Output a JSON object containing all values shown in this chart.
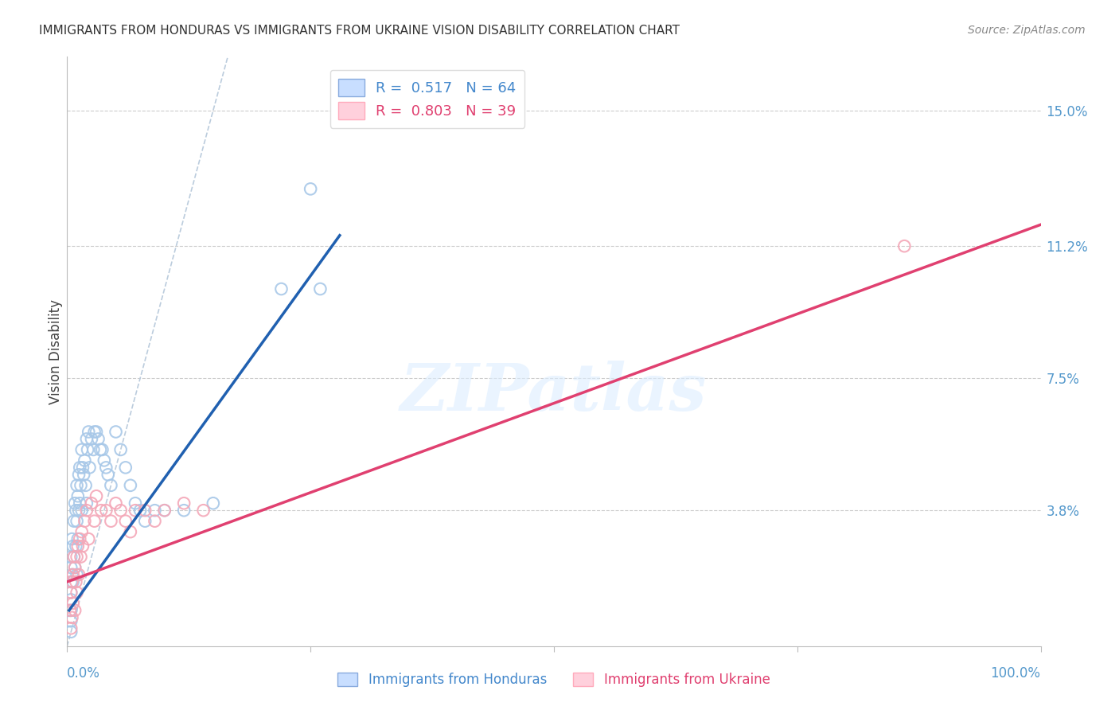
{
  "title": "IMMIGRANTS FROM HONDURAS VS IMMIGRANTS FROM UKRAINE VISION DISABILITY CORRELATION CHART",
  "source": "Source: ZipAtlas.com",
  "ylabel": "Vision Disability",
  "ytick_vals": [
    0.0,
    0.038,
    0.075,
    0.112,
    0.15
  ],
  "ytick_labels": [
    "",
    "3.8%",
    "7.5%",
    "11.2%",
    "15.0%"
  ],
  "xlim": [
    0.0,
    1.0
  ],
  "ylim": [
    0.0,
    0.165
  ],
  "watermark": "ZIPatlas",
  "honduras_color": "#A8C8E8",
  "ukraine_color": "#F4A8B8",
  "honduras_line_color": "#2060B0",
  "ukraine_line_color": "#E04070",
  "diagonal_color": "#BBCCDD",
  "background_color": "#FFFFFF",
  "grid_color": "#CCCCCC",
  "title_color": "#333333",
  "axis_label_color": "#5599CC",
  "ylabel_color": "#444444",
  "source_color": "#888888",
  "watermark_color": "#DDEEFF",
  "legend_R1": "R =  0.517",
  "legend_N1": "N = 64",
  "legend_R2": "R =  0.803",
  "legend_N2": "N = 39",
  "legend_color1": "#4488CC",
  "legend_color2": "#E04070",
  "honduras_scatter_x": [
    0.004,
    0.004,
    0.004,
    0.004,
    0.004,
    0.004,
    0.004,
    0.004,
    0.005,
    0.005,
    0.006,
    0.006,
    0.007,
    0.007,
    0.008,
    0.008,
    0.009,
    0.009,
    0.01,
    0.01,
    0.01,
    0.011,
    0.011,
    0.012,
    0.012,
    0.013,
    0.013,
    0.014,
    0.015,
    0.015,
    0.016,
    0.017,
    0.018,
    0.019,
    0.02,
    0.02,
    0.021,
    0.022,
    0.023,
    0.025,
    0.027,
    0.028,
    0.03,
    0.032,
    0.034,
    0.036,
    0.038,
    0.04,
    0.042,
    0.045,
    0.05,
    0.055,
    0.06,
    0.065,
    0.07,
    0.075,
    0.08,
    0.09,
    0.1,
    0.12,
    0.15,
    0.22,
    0.25,
    0.26
  ],
  "honduras_scatter_y": [
    0.025,
    0.022,
    0.018,
    0.015,
    0.013,
    0.01,
    0.007,
    0.004,
    0.03,
    0.02,
    0.028,
    0.018,
    0.035,
    0.025,
    0.04,
    0.022,
    0.038,
    0.028,
    0.045,
    0.035,
    0.02,
    0.042,
    0.03,
    0.048,
    0.038,
    0.05,
    0.04,
    0.045,
    0.055,
    0.038,
    0.05,
    0.048,
    0.052,
    0.045,
    0.058,
    0.04,
    0.055,
    0.06,
    0.05,
    0.058,
    0.055,
    0.06,
    0.06,
    0.058,
    0.055,
    0.055,
    0.052,
    0.05,
    0.048,
    0.045,
    0.06,
    0.055,
    0.05,
    0.045,
    0.04,
    0.038,
    0.035,
    0.038,
    0.038,
    0.038,
    0.04,
    0.1,
    0.128,
    0.1
  ],
  "ukraine_scatter_x": [
    0.003,
    0.004,
    0.004,
    0.005,
    0.005,
    0.006,
    0.006,
    0.007,
    0.008,
    0.008,
    0.009,
    0.01,
    0.01,
    0.011,
    0.012,
    0.013,
    0.014,
    0.015,
    0.016,
    0.018,
    0.02,
    0.022,
    0.025,
    0.028,
    0.03,
    0.035,
    0.04,
    0.045,
    0.05,
    0.055,
    0.06,
    0.065,
    0.07,
    0.08,
    0.09,
    0.1,
    0.12,
    0.14,
    0.86
  ],
  "ukraine_scatter_y": [
    0.01,
    0.015,
    0.005,
    0.018,
    0.008,
    0.02,
    0.012,
    0.025,
    0.022,
    0.01,
    0.018,
    0.025,
    0.015,
    0.028,
    0.02,
    0.03,
    0.025,
    0.032,
    0.028,
    0.035,
    0.038,
    0.03,
    0.04,
    0.035,
    0.042,
    0.038,
    0.038,
    0.035,
    0.04,
    0.038,
    0.035,
    0.032,
    0.038,
    0.038,
    0.035,
    0.038,
    0.04,
    0.038,
    0.112
  ],
  "honduras_line_x": [
    0.002,
    0.28
  ],
  "honduras_line_y": [
    0.01,
    0.115
  ],
  "ukraine_line_x": [
    0.0,
    1.0
  ],
  "ukraine_line_y": [
    0.018,
    0.118
  ]
}
